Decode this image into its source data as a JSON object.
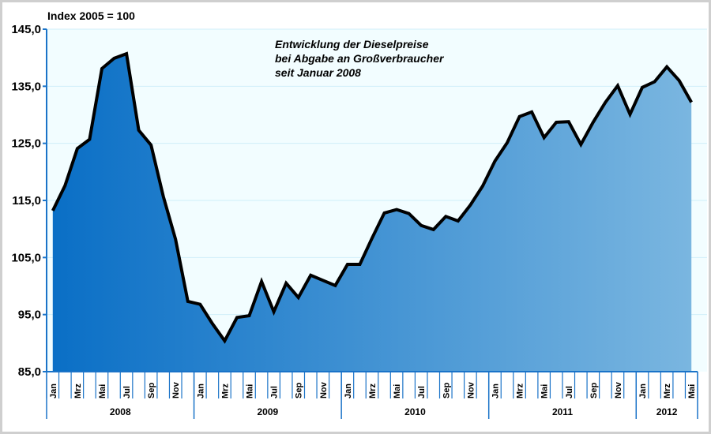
{
  "chart_data": {
    "type": "area",
    "title_lines": [
      "Entwicklung der Dieselpreise",
      "bei Abgabe an Großverbraucher",
      "seit Januar 2008"
    ],
    "ylabel": "Index 2005 = 100",
    "ylim": [
      85,
      145
    ],
    "yticks": [
      "85,0",
      "95,0",
      "105,0",
      "115,0",
      "125,0",
      "135,0",
      "145,0"
    ],
    "ytick_values": [
      85,
      95,
      105,
      115,
      125,
      135,
      145
    ],
    "month_labels": [
      "Jan",
      "",
      "Mrz",
      "",
      "Mai",
      "",
      "Jul",
      "",
      "Sep",
      "",
      "Nov",
      "",
      "Jan",
      "",
      "Mrz",
      "",
      "Mai",
      "",
      "Jul",
      "",
      "Sep",
      "",
      "Nov",
      "",
      "Jan",
      "",
      "Mrz",
      "",
      "Mai",
      "",
      "Jul",
      "",
      "Sep",
      "",
      "Nov",
      "",
      "Jan",
      "",
      "Mrz",
      "",
      "Mai",
      "",
      "Jul",
      "",
      "Sep",
      "",
      "Nov",
      "",
      "Jan",
      "",
      "Mrz",
      "",
      "Mai"
    ],
    "years": [
      {
        "label": "2008",
        "months": 12
      },
      {
        "label": "2009",
        "months": 12
      },
      {
        "label": "2010",
        "months": 12
      },
      {
        "label": "2011",
        "months": 12
      },
      {
        "label": "2012",
        "months": 5
      }
    ],
    "values": [
      113.2,
      117.6,
      124.1,
      125.7,
      138.1,
      139.9,
      140.7,
      127.3,
      124.7,
      115.7,
      108.2,
      97.3,
      96.8,
      93.4,
      90.4,
      94.5,
      94.8,
      100.8,
      95.5,
      100.5,
      98.0,
      101.9,
      101.0,
      100.1,
      103.8,
      103.8,
      108.4,
      112.8,
      113.4,
      112.7,
      110.6,
      109.9,
      112.2,
      111.4,
      114.2,
      117.5,
      121.9,
      125.1,
      129.7,
      130.5,
      126.0,
      128.7,
      128.8,
      124.8,
      128.7,
      132.2,
      135.1,
      130.1,
      134.8,
      135.8,
      138.4,
      136.0,
      132.2
    ],
    "grid": true,
    "colors": {
      "fill_start": "#0a6fc6",
      "fill_end": "#7ab6e0",
      "line": "#000000",
      "plot_bg": "#f2fdff",
      "axis": "#1a73c8",
      "grid": "#cfeefa"
    }
  }
}
